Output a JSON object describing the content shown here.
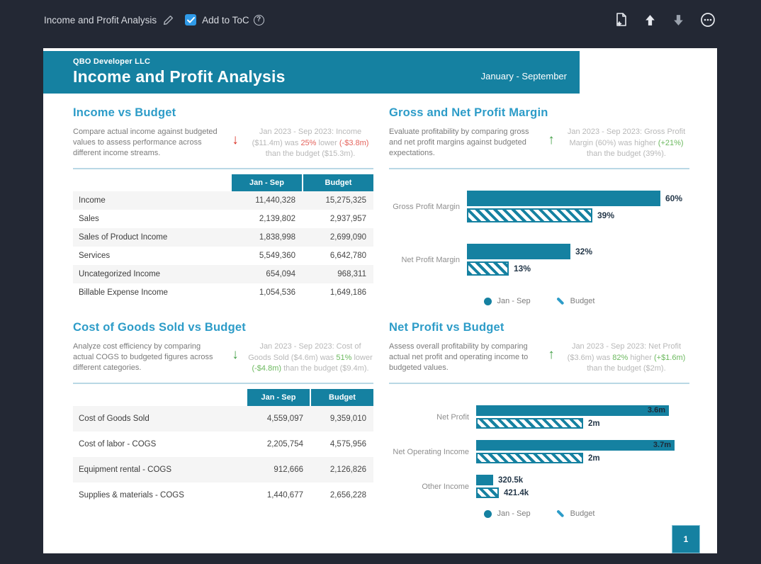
{
  "topbar": {
    "title": "Income and Profit Analysis",
    "add_to_toc_label": "Add to ToC",
    "toc_checked": true,
    "action_icons": [
      "edit-pencil-icon",
      "help-circle-icon",
      "page-settings-icon",
      "move-up-icon",
      "move-down-icon",
      "more-options-icon"
    ]
  },
  "page": {
    "company": "QBO Developer LLC",
    "title": "Income and Profit Analysis",
    "period": "January - September",
    "page_number": "1"
  },
  "colors": {
    "teal": "#1581a1",
    "section_title_blue": "#2d9cc8",
    "red": "#d93025",
    "green": "#43a047",
    "background_dark": "#232834"
  },
  "sections": {
    "income": {
      "title": "Income vs Budget",
      "description": "Compare actual income against budgeted values to assess performance across different income streams.",
      "trend_arrow": "down",
      "trend_color": "red",
      "summary": [
        {
          "text": "Jan 2023 - Sep 2023: Income ($11.4m) was "
        },
        {
          "text": "25%",
          "highlight": "red"
        },
        {
          "text": " lower "
        },
        {
          "text": "(-$3.8m)",
          "highlight": "red"
        },
        {
          "text": " than the budget ($15.3m)."
        }
      ],
      "table": {
        "columns": [
          "Jan - Sep",
          "Budget"
        ],
        "rows": [
          {
            "label": "Income",
            "values": [
              "11,440,328",
              "15,275,325"
            ]
          },
          {
            "label": "Sales",
            "values": [
              "2,139,802",
              "2,937,957"
            ]
          },
          {
            "label": "Sales of Product Income",
            "values": [
              "1,838,998",
              "2,699,090"
            ]
          },
          {
            "label": "Services",
            "values": [
              "5,549,360",
              "6,642,780"
            ]
          },
          {
            "label": "Uncategorized Income",
            "values": [
              "654,094",
              "968,311"
            ]
          },
          {
            "label": "Billable Expense Income",
            "values": [
              "1,054,536",
              "1,649,186"
            ]
          }
        ]
      }
    },
    "gross_net_margin": {
      "title": "Gross and Net Profit Margin",
      "description": "Evaluate profitability by comparing gross and net profit margins against budgeted expectations.",
      "trend_arrow": "up",
      "trend_color": "green",
      "summary": [
        {
          "text": "Jan 2023 - Sep 2023: Gross Profit Margin (60%) was higher "
        },
        {
          "text": "(+21%)",
          "highlight": "green"
        },
        {
          "text": " than the budget (39%)."
        }
      ],
      "chart": {
        "type": "bar",
        "orientation": "horizontal",
        "categories": [
          "Gross Profit Margin",
          "Net Profit Margin"
        ],
        "series": [
          {
            "name": "Jan - Sep",
            "style": "solid",
            "values": [
              60,
              32
            ],
            "labels": [
              "60%",
              "32%"
            ]
          },
          {
            "name": "Budget",
            "style": "hatched",
            "values": [
              39,
              13
            ],
            "labels": [
              "39%",
              "13%"
            ]
          }
        ],
        "value_labels_inside": false
      }
    },
    "cogs": {
      "title": "Cost of Goods Sold vs Budget",
      "description": "Analyze cost efficiency by comparing actual COGS to budgeted figures across different categories.",
      "trend_arrow": "down",
      "trend_color": "green",
      "summary": [
        {
          "text": "Jan 2023 - Sep 2023: Cost of Goods Sold ($4.6m) was "
        },
        {
          "text": "51%",
          "highlight": "green"
        },
        {
          "text": " lower "
        },
        {
          "text": "(-$4.8m)",
          "highlight": "green"
        },
        {
          "text": " than the budget ($9.4m)."
        }
      ],
      "table": {
        "columns": [
          "Jan - Sep",
          "Budget"
        ],
        "rows": [
          {
            "label": "Cost of Goods Sold",
            "values": [
              "4,559,097",
              "9,359,010"
            ]
          },
          {
            "label": "Cost of labor - COGS",
            "values": [
              "2,205,754",
              "4,575,956"
            ]
          },
          {
            "label": "Equipment rental - COGS",
            "values": [
              "912,666",
              "2,126,826"
            ]
          },
          {
            "label": "Supplies & materials - COGS",
            "values": [
              "1,440,677",
              "2,656,228"
            ]
          }
        ]
      }
    },
    "net_profit": {
      "title": "Net Profit vs Budget",
      "description": "Assess overall profitability by comparing actual net profit and operating income to budgeted values.",
      "trend_arrow": "up",
      "trend_color": "green",
      "summary": [
        {
          "text": "Jan 2023 - Sep 2023: Net Profit ($3.6m) was "
        },
        {
          "text": "82%",
          "highlight": "green"
        },
        {
          "text": " higher "
        },
        {
          "text": "(+$1.6m)",
          "highlight": "green"
        },
        {
          "text": " than the budget ($2m)."
        }
      ],
      "chart": {
        "type": "bar",
        "orientation": "horizontal",
        "categories": [
          "Net Profit",
          "Net Operating Income",
          "Other Income"
        ],
        "series": [
          {
            "name": "Jan - Sep",
            "style": "solid",
            "values": [
              3600000,
              3700000,
              320500
            ],
            "labels": [
              "3.6m",
              "3.7m",
              "320.5k"
            ]
          },
          {
            "name": "Budget",
            "style": "hatched",
            "values": [
              2000000,
              2000000,
              421400
            ],
            "labels": [
              "2m",
              "2m",
              "421.4k"
            ]
          }
        ],
        "value_labels_inside": true
      }
    }
  }
}
